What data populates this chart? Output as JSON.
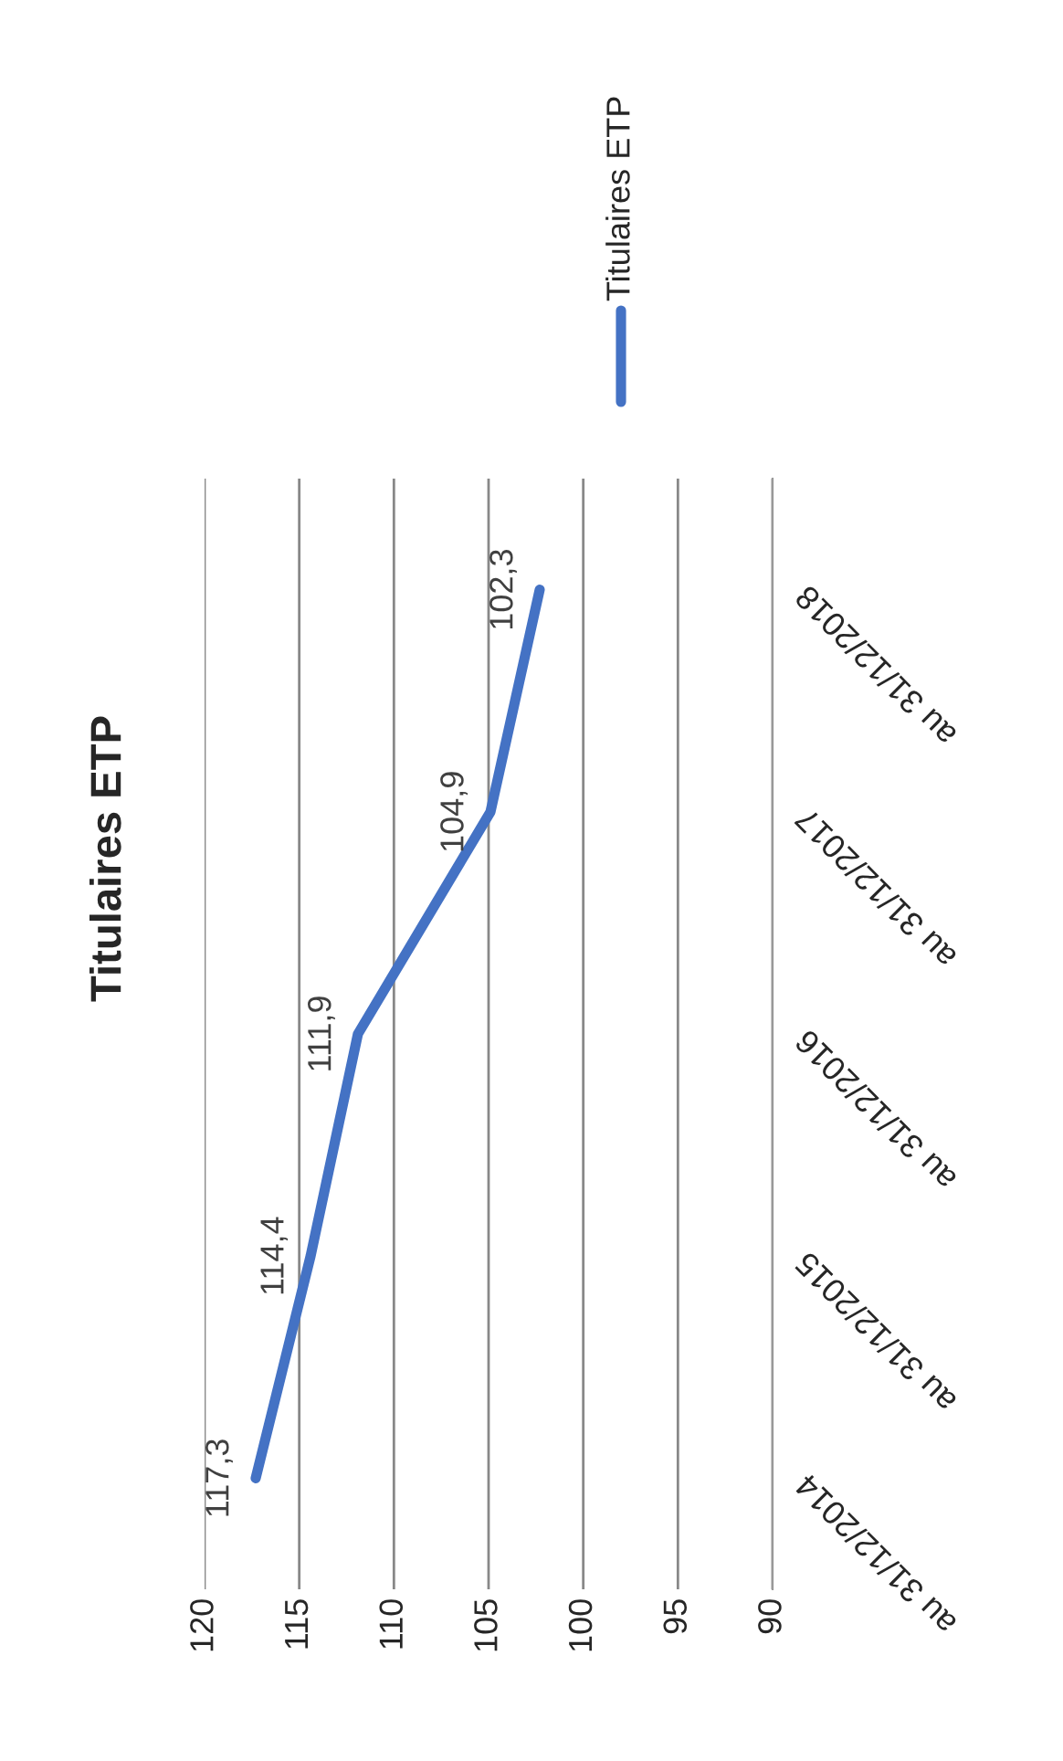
{
  "chart_data": {
    "type": "line",
    "title": "Titulaires ETP",
    "orientation": "horizontal",
    "categories": [
      "au 31/12/2018",
      "au 31/12/2017",
      "au 31/12/2016",
      "au 31/12/2015",
      "au 31/12/2014"
    ],
    "series": [
      {
        "name": "Titulaires ETP",
        "color": "#4472c4",
        "values": [
          102.3,
          104.9,
          111.9,
          114.4,
          117.3
        ],
        "value_labels": [
          "102,3",
          "104,9",
          "111,9",
          "114,4",
          "117,3"
        ]
      }
    ],
    "xlim": [
      120,
      90
    ],
    "xticks": [
      120,
      115,
      110,
      105,
      100,
      95,
      90
    ],
    "grid": "x",
    "legend": "top right",
    "marker": "none",
    "line_style": "solid"
  }
}
